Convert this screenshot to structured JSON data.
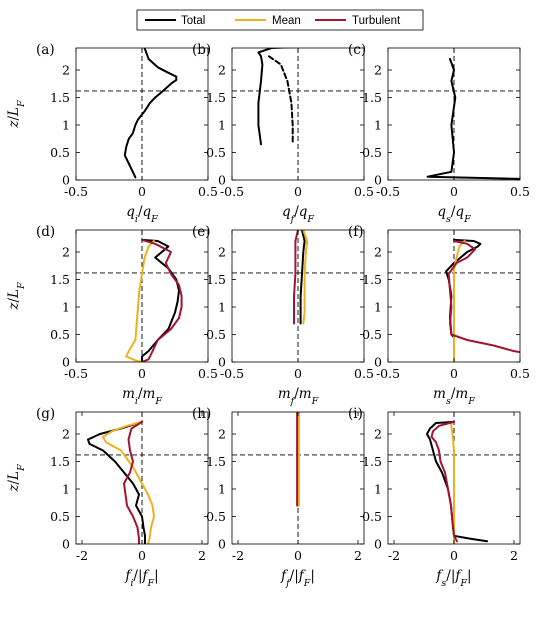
{
  "legend": [
    {
      "label": "Total",
      "color": "#000000"
    },
    {
      "label": "Mean",
      "color": "#EDB120"
    },
    {
      "label": "Turbulent",
      "color": "#A2142F"
    }
  ],
  "chart_data": [
    {
      "type": "line",
      "panel": "(a)",
      "xlabel": "q_i/q_F",
      "ylabel": "z/L_F",
      "xlim": [
        -0.5,
        0.5
      ],
      "ylim": [
        0,
        2.4
      ],
      "xticks": [
        "-0.5",
        "0",
        "0.5"
      ],
      "yticks": [
        "0",
        "0.5",
        "1",
        "1.5",
        "2"
      ],
      "ref_x": 0,
      "ref_y": 1.62,
      "series": [
        {
          "name": "Total",
          "style": "solid",
          "y": [
            2.4,
            2.2,
            2.05,
            1.95,
            1.88,
            1.82,
            1.75,
            1.62,
            1.5,
            1.4,
            1.25,
            1.1,
            1.0,
            0.85,
            0.75,
            0.6,
            0.45,
            0.3,
            0.15,
            0.05
          ],
          "x": [
            0.02,
            0.05,
            0.12,
            0.2,
            0.26,
            0.26,
            0.22,
            0.16,
            0.1,
            0.06,
            0.02,
            -0.03,
            -0.05,
            -0.07,
            -0.1,
            -0.12,
            -0.13,
            -0.1,
            -0.07,
            -0.05
          ]
        }
      ]
    },
    {
      "type": "line",
      "panel": "(b)",
      "xlabel": "q_f/q_F",
      "ylabel": "",
      "xlim": [
        -0.5,
        0.5
      ],
      "ylim": [
        0,
        2.4
      ],
      "xticks": [
        "-0.5",
        "0",
        "0.5"
      ],
      "yticks": [
        "0",
        "0.5",
        "1",
        "1.5",
        "2"
      ],
      "ref_x": 0,
      "ref_y": 1.62,
      "series": [
        {
          "name": "Total",
          "style": "solid",
          "y": [
            2.42,
            2.4,
            2.32,
            2.25,
            2.1,
            1.8,
            1.4,
            1.0,
            0.65
          ],
          "x": [
            0.0,
            -0.2,
            -0.3,
            -0.28,
            -0.27,
            -0.28,
            -0.3,
            -0.3,
            -0.28
          ]
        },
        {
          "name": "Total",
          "style": "dashed",
          "y": [
            2.25,
            2.1,
            1.8,
            1.4,
            1.0,
            0.65
          ],
          "x": [
            -0.22,
            -0.13,
            -0.08,
            -0.05,
            -0.04,
            -0.04
          ]
        }
      ]
    },
    {
      "type": "line",
      "panel": "(c)",
      "xlabel": "q_s/q_F",
      "ylabel": "",
      "xlim": [
        -0.5,
        0.5
      ],
      "ylim": [
        0,
        2.4
      ],
      "xticks": [
        "-0.5",
        "0",
        "0.5"
      ],
      "yticks": [
        "0",
        "0.5",
        "1",
        "1.5",
        "2"
      ],
      "ref_x": 0,
      "ref_y": 1.62,
      "series": [
        {
          "name": "Total",
          "style": "solid",
          "y": [
            2.2,
            2.0,
            1.8,
            1.5,
            1.0,
            0.5,
            0.15,
            0.06,
            0.02
          ],
          "x": [
            -0.03,
            0.0,
            -0.02,
            0.01,
            -0.02,
            0.0,
            -0.02,
            -0.2,
            0.5
          ]
        }
      ]
    },
    {
      "type": "line",
      "panel": "(d)",
      "xlabel": "m_i/m_F",
      "ylabel": "z/L_F",
      "xlim": [
        -0.5,
        0.5
      ],
      "ylim": [
        0,
        2.4
      ],
      "xticks": [
        "-0.5",
        "0",
        "0.5"
      ],
      "yticks": [
        "0",
        "0.5",
        "1",
        "1.5",
        "2"
      ],
      "ref_x": 0,
      "ref_y": 1.62,
      "series": [
        {
          "name": "Total",
          "style": "solid",
          "y": [
            2.22,
            2.2,
            2.1,
            1.9,
            1.7,
            1.5,
            1.3,
            1.1,
            0.9,
            0.6,
            0.4,
            0.2,
            0.1,
            0.0
          ],
          "x": [
            0.0,
            0.12,
            0.2,
            0.1,
            0.2,
            0.26,
            0.28,
            0.27,
            0.25,
            0.2,
            0.12,
            0.05,
            0.0,
            0.0
          ]
        },
        {
          "name": "Mean",
          "style": "solid",
          "y": [
            2.2,
            2.1,
            1.9,
            1.6,
            1.3,
            1.0,
            0.7,
            0.4,
            0.2,
            0.1,
            0.03,
            0.0
          ],
          "x": [
            0.09,
            0.05,
            0.02,
            0.0,
            -0.02,
            -0.03,
            -0.04,
            -0.05,
            -0.1,
            -0.12,
            -0.05,
            0.0
          ]
        },
        {
          "name": "Turbulent",
          "style": "solid",
          "y": [
            2.22,
            2.15,
            2.0,
            1.8,
            1.6,
            1.4,
            1.2,
            1.0,
            0.8,
            0.6,
            0.4,
            0.2,
            0.05,
            0.0
          ],
          "x": [
            0.0,
            0.1,
            0.22,
            0.18,
            0.22,
            0.28,
            0.3,
            0.3,
            0.28,
            0.22,
            0.12,
            0.08,
            0.05,
            0.0
          ]
        }
      ]
    },
    {
      "type": "line",
      "panel": "(e)",
      "xlabel": "m_f/m_F",
      "ylabel": "",
      "xlim": [
        -0.5,
        0.5
      ],
      "ylim": [
        0,
        2.4
      ],
      "xticks": [
        "-0.5",
        "0",
        "0.5"
      ],
      "yticks": [
        "0",
        "0.5",
        "1",
        "1.5",
        "2"
      ],
      "ref_x": 0,
      "ref_y": 1.62,
      "series": [
        {
          "name": "Total",
          "style": "solid",
          "y": [
            2.4,
            2.2,
            2.0,
            1.6,
            1.2,
            0.9,
            0.7
          ],
          "x": [
            0.03,
            0.05,
            0.04,
            0.03,
            0.02,
            0.02,
            0.02
          ]
        },
        {
          "name": "Mean",
          "style": "solid",
          "y": [
            2.4,
            2.2,
            2.0,
            1.6,
            1.2,
            0.9,
            0.7
          ],
          "x": [
            0.04,
            0.07,
            0.06,
            0.05,
            0.05,
            0.05,
            0.04
          ]
        },
        {
          "name": "Turbulent",
          "style": "solid",
          "y": [
            2.4,
            2.2,
            2.0,
            1.6,
            1.2,
            0.9,
            0.7
          ],
          "x": [
            0.0,
            -0.02,
            -0.02,
            -0.02,
            -0.03,
            -0.03,
            -0.03
          ]
        }
      ]
    },
    {
      "type": "line",
      "panel": "(f)",
      "xlabel": "m_s/m_F",
      "ylabel": "",
      "xlim": [
        -0.5,
        0.5
      ],
      "ylim": [
        0,
        2.4
      ],
      "xticks": [
        "-0.5",
        "0",
        "0.5"
      ],
      "yticks": [
        "0",
        "0.5",
        "1",
        "1.5",
        "2"
      ],
      "ref_x": 0,
      "ref_y": 1.62,
      "series": [
        {
          "name": "Total",
          "style": "solid",
          "y": [
            2.22,
            2.2,
            2.15,
            2.1,
            2.0,
            1.9,
            1.8,
            1.65,
            1.5,
            1.2,
            0.8,
            0.5,
            0.45
          ],
          "x": [
            0.0,
            0.15,
            0.2,
            0.18,
            0.1,
            0.05,
            0.0,
            -0.06,
            -0.04,
            -0.02,
            -0.03,
            -0.02,
            0.0
          ]
        },
        {
          "name": "Mean",
          "style": "solid",
          "y": [
            2.2,
            2.1,
            1.9,
            1.7,
            1.4,
            1.0,
            0.6,
            0.3,
            0.0
          ],
          "x": [
            0.08,
            0.04,
            0.02,
            0.0,
            0.0,
            0.0,
            0.0,
            0.0,
            0.0
          ]
        },
        {
          "name": "Turbulent",
          "style": "solid",
          "y": [
            2.2,
            2.15,
            2.05,
            1.9,
            1.8,
            1.6,
            1.3,
            1.0,
            0.7,
            0.5,
            0.4,
            0.3,
            0.2,
            0.18
          ],
          "x": [
            0.0,
            0.1,
            0.16,
            0.1,
            0.02,
            -0.04,
            -0.03,
            -0.02,
            -0.03,
            -0.02,
            0.1,
            0.3,
            0.45,
            0.5
          ]
        }
      ]
    },
    {
      "type": "line",
      "panel": "(g)",
      "xlabel": "f_i/|f_F|",
      "ylabel": "z/L_F",
      "xlim": [
        -2.2,
        2.2
      ],
      "ylim": [
        0,
        2.4
      ],
      "xticks": [
        "-2",
        "0",
        "2"
      ],
      "yticks": [
        "0",
        "0.5",
        "1",
        "1.5",
        "2"
      ],
      "ref_x": 0,
      "ref_y": 1.62,
      "series": [
        {
          "name": "Total",
          "style": "solid",
          "y": [
            2.22,
            2.1,
            2.0,
            1.9,
            1.82,
            1.7,
            1.5,
            1.3,
            1.1,
            0.9,
            0.7,
            0.5,
            0.3,
            0.15,
            0.0
          ],
          "x": [
            0.0,
            -0.7,
            -1.4,
            -1.8,
            -1.75,
            -1.3,
            -0.9,
            -0.6,
            -0.3,
            -0.1,
            -0.2,
            0.0,
            0.05,
            0.1,
            0.1
          ]
        },
        {
          "name": "Mean",
          "style": "solid",
          "y": [
            2.22,
            2.15,
            2.05,
            1.95,
            1.85,
            1.7,
            1.4,
            1.1,
            0.9,
            0.7,
            0.5,
            0.3,
            0.1,
            0.0
          ],
          "x": [
            0.0,
            -0.5,
            -1.0,
            -1.3,
            -1.2,
            -0.7,
            -0.3,
            0.0,
            0.2,
            0.35,
            0.4,
            0.3,
            0.25,
            0.2
          ]
        },
        {
          "name": "Turbulent",
          "style": "solid",
          "y": [
            2.22,
            2.1,
            1.9,
            1.7,
            1.5,
            1.3,
            1.1,
            0.9,
            0.7,
            0.5,
            0.3,
            0.1,
            0.0
          ],
          "x": [
            0.0,
            -0.35,
            -0.45,
            -0.4,
            -0.3,
            -0.4,
            -0.6,
            -0.55,
            -0.5,
            -0.3,
            -0.15,
            -0.1,
            -0.1
          ]
        }
      ]
    },
    {
      "type": "line",
      "panel": "(h)",
      "xlabel": "f_f/|f_F|",
      "ylabel": "",
      "xlim": [
        -2.2,
        2.2
      ],
      "ylim": [
        0,
        2.4
      ],
      "xticks": [
        "-2",
        "0",
        "2"
      ],
      "yticks": [
        "0",
        "0.5",
        "1",
        "1.5",
        "2"
      ],
      "ref_x": 0,
      "ref_y": 1.62,
      "series": [
        {
          "name": "Total",
          "style": "solid",
          "y": [
            2.42,
            2.2,
            1.8,
            1.4,
            1.0,
            0.7
          ],
          "x": [
            0.0,
            0.0,
            0.0,
            0.0,
            0.0,
            0.0
          ]
        },
        {
          "name": "Mean",
          "style": "solid",
          "y": [
            2.42,
            2.2,
            1.8,
            1.4,
            1.0,
            0.7
          ],
          "x": [
            0.03,
            0.03,
            0.03,
            0.03,
            0.03,
            0.03
          ]
        },
        {
          "name": "Turbulent",
          "style": "solid",
          "y": [
            2.42,
            2.2,
            1.8,
            1.4,
            1.0,
            0.7
          ],
          "x": [
            -0.03,
            -0.03,
            -0.03,
            -0.03,
            -0.03,
            -0.03
          ]
        }
      ]
    },
    {
      "type": "line",
      "panel": "(i)",
      "xlabel": "f_s/|f_F|",
      "ylabel": "",
      "xlim": [
        -2.2,
        2.2
      ],
      "ylim": [
        0,
        2.4
      ],
      "xticks": [
        "-2",
        "0",
        "2"
      ],
      "yticks": [
        "0",
        "0.5",
        "1",
        "1.5",
        "2"
      ],
      "ref_x": 0,
      "ref_y": 1.62,
      "series": [
        {
          "name": "Total",
          "style": "solid",
          "y": [
            2.22,
            2.2,
            2.1,
            2.0,
            1.9,
            1.7,
            1.5,
            1.3,
            1.0,
            0.7,
            0.4,
            0.15,
            0.1,
            0.05
          ],
          "x": [
            0.0,
            -0.6,
            -0.8,
            -0.9,
            -0.8,
            -0.7,
            -0.6,
            -0.4,
            -0.2,
            -0.1,
            -0.05,
            0.0,
            0.5,
            1.1
          ]
        },
        {
          "name": "Mean",
          "style": "solid",
          "y": [
            2.2,
            2.0,
            1.7,
            1.3,
            0.9,
            0.5,
            0.1,
            0.0
          ],
          "x": [
            -0.1,
            -0.05,
            0.0,
            0.0,
            0.0,
            0.0,
            0.0,
            0.0
          ]
        },
        {
          "name": "Turbulent",
          "style": "solid",
          "y": [
            2.22,
            2.15,
            2.05,
            1.95,
            1.85,
            1.7,
            1.5,
            1.3,
            1.0,
            0.7,
            0.4,
            0.15,
            0.05
          ],
          "x": [
            0.0,
            -0.5,
            -0.7,
            -0.75,
            -0.6,
            -0.5,
            -0.45,
            -0.3,
            -0.2,
            -0.1,
            -0.05,
            0.0,
            0.1
          ]
        }
      ]
    }
  ]
}
